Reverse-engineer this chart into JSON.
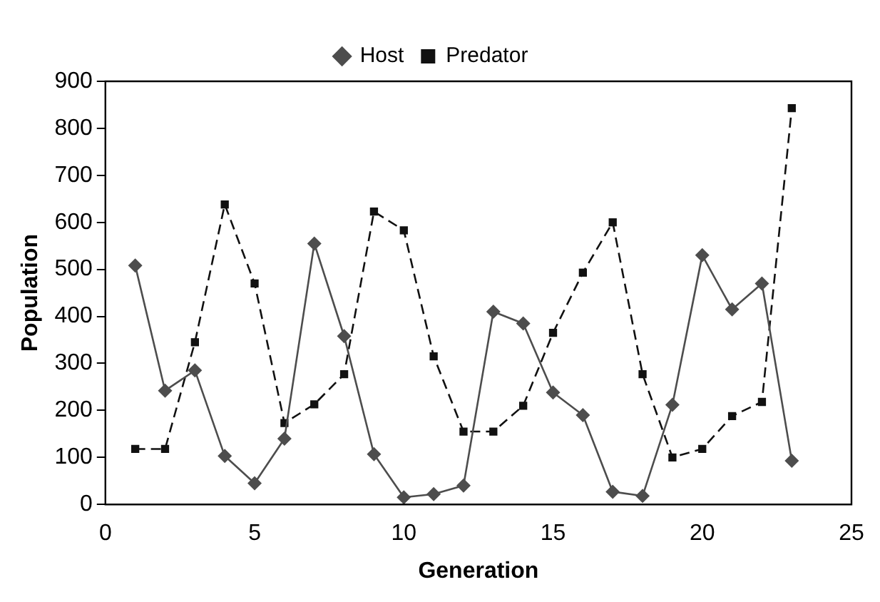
{
  "chart_data": {
    "type": "line",
    "xlabel": "Generation",
    "ylabel": "Population",
    "x": [
      1,
      2,
      3,
      4,
      5,
      6,
      7,
      8,
      9,
      10,
      11,
      12,
      13,
      14,
      15,
      16,
      17,
      18,
      19,
      20,
      21,
      22,
      23
    ],
    "xlim": [
      0,
      25
    ],
    "xticks": [
      0,
      5,
      10,
      15,
      20,
      25
    ],
    "ylim": [
      0,
      900
    ],
    "yticks": [
      0,
      100,
      200,
      300,
      400,
      500,
      600,
      700,
      800,
      900
    ],
    "grid": false,
    "legend": "top",
    "series": [
      {
        "name": "Host",
        "color": "#4d4d4d",
        "marker": "diamond",
        "line_style": "solid",
        "values": [
          508,
          242,
          285,
          103,
          45,
          140,
          555,
          358,
          107,
          15,
          22,
          40,
          410,
          385,
          238,
          190,
          27,
          18,
          212,
          530,
          415,
          470,
          93
        ]
      },
      {
        "name": "Predator",
        "color": "#111111",
        "marker": "square",
        "line_style": "dashed",
        "values": [
          118,
          118,
          345,
          638,
          470,
          173,
          213,
          277,
          623,
          583,
          315,
          155,
          155,
          210,
          365,
          493,
          600,
          277,
          100,
          118,
          188,
          218,
          843
        ]
      }
    ]
  }
}
